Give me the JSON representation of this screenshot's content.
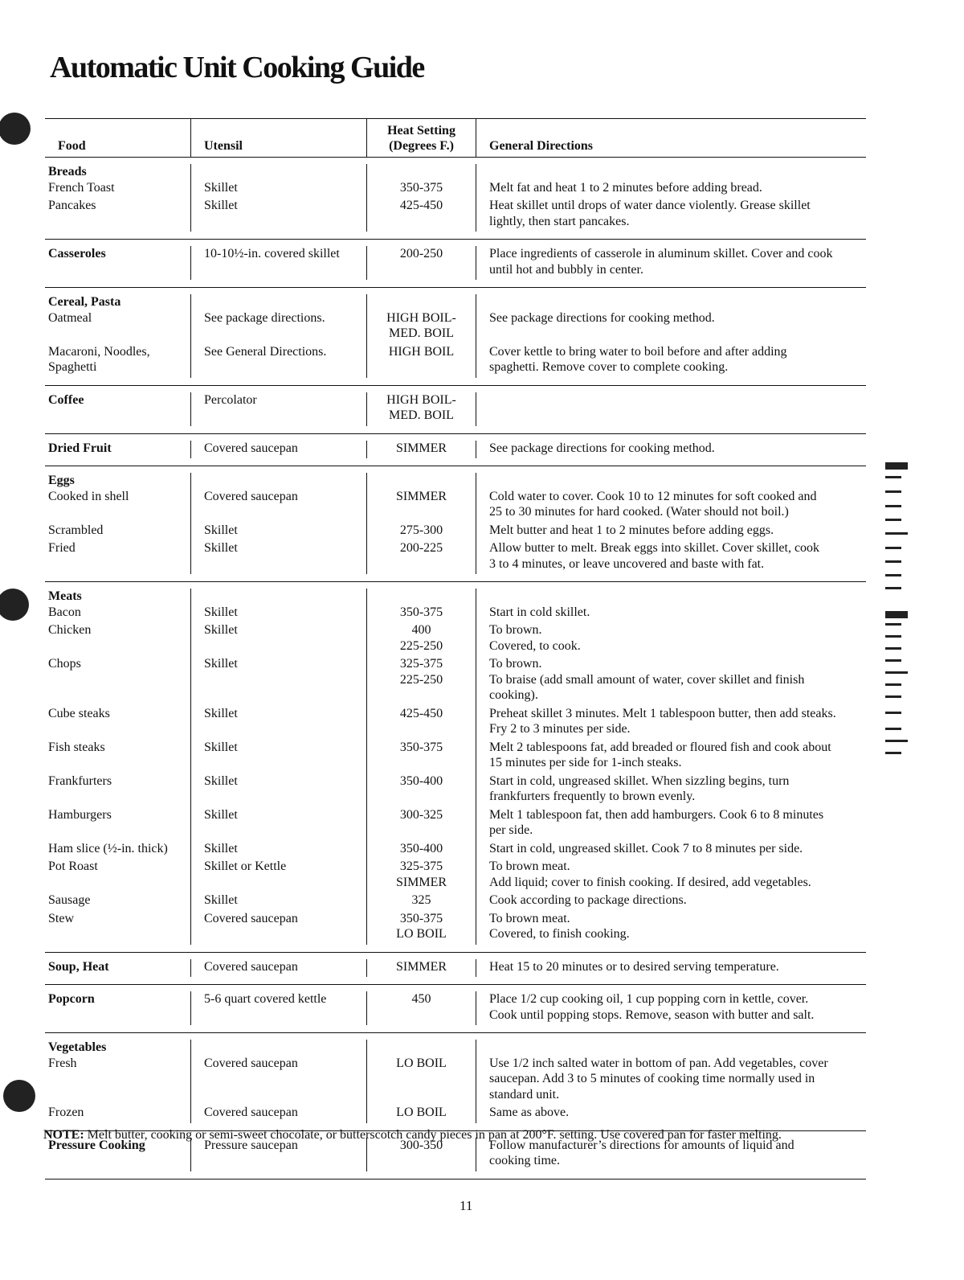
{
  "title": "Automatic Unit Cooking Guide",
  "headers": {
    "food": "Food",
    "utensil": "Utensil",
    "heat_setting": [
      "Heat Setting",
      "(Degrees F.)"
    ],
    "directions": "General Directions"
  },
  "sections": [
    {
      "heading": "Breads",
      "entries": [
        {
          "food": [
            "French Toast"
          ],
          "utensil": [
            "Skillet"
          ],
          "heat": [
            "350-375"
          ],
          "dir": [
            "Melt fat and heat 1 to 2 minutes before adding bread."
          ]
        },
        {
          "food": [
            "Pancakes"
          ],
          "utensil": [
            "Skillet"
          ],
          "heat": [
            "425-450"
          ],
          "dir": [
            "Heat skillet until drops of water dance violently. Grease skillet",
            "lightly, then start pancakes."
          ]
        }
      ]
    },
    {
      "heading": null,
      "entries": [
        {
          "food": [
            "Casseroles"
          ],
          "bold": true,
          "utensil": [
            "10-10½-in. covered skillet"
          ],
          "heat": [
            "200-250"
          ],
          "dir": [
            "Place ingredients of casserole in aluminum skillet. Cover and cook",
            "until hot and bubbly in center."
          ]
        }
      ]
    },
    {
      "heading": "Cereal, Pasta",
      "entries": [
        {
          "food": [
            "Oatmeal"
          ],
          "utensil": [
            "See package directions."
          ],
          "heat": [
            "HIGH BOIL-",
            "MED. BOIL"
          ],
          "dir": [
            "See package directions for cooking method."
          ]
        },
        {
          "food": [
            "Macaroni, Noodles,",
            "Spaghetti"
          ],
          "utensil": [
            "See General Directions."
          ],
          "heat": [
            "HIGH BOIL"
          ],
          "dir": [
            "Cover kettle to bring water to boil before and after adding",
            "spaghetti. Remove cover to complete cooking."
          ]
        }
      ]
    },
    {
      "heading": null,
      "entries": [
        {
          "food": [
            "Coffee"
          ],
          "bold": true,
          "utensil": [
            "Percolator"
          ],
          "heat": [
            "HIGH BOIL-",
            "MED. BOIL"
          ],
          "dir": []
        }
      ]
    },
    {
      "heading": null,
      "entries": [
        {
          "food": [
            "Dried Fruit"
          ],
          "bold": true,
          "utensil": [
            "Covered saucepan"
          ],
          "heat": [
            "SIMMER"
          ],
          "dir": [
            "See package directions for cooking method."
          ]
        }
      ]
    },
    {
      "heading": "Eggs",
      "entries": [
        {
          "food": [
            "Cooked in shell"
          ],
          "utensil": [
            "Covered saucepan"
          ],
          "heat": [
            "SIMMER"
          ],
          "dir": [
            "Cold water to cover. Cook 10 to 12 minutes for soft cooked and",
            "25 to 30 minutes for hard cooked. (Water should not boil.)"
          ]
        },
        {
          "food": [
            "Scrambled"
          ],
          "utensil": [
            "Skillet"
          ],
          "heat": [
            "275-300"
          ],
          "dir": [
            "Melt butter and heat 1 to 2 minutes before adding eggs."
          ]
        },
        {
          "food": [
            "Fried"
          ],
          "utensil": [
            "Skillet"
          ],
          "heat": [
            "200-225"
          ],
          "dir": [
            "Allow butter to melt. Break eggs into skillet. Cover skillet, cook",
            "3 to 4 minutes, or leave uncovered and baste with fat."
          ]
        }
      ]
    },
    {
      "heading": "Meats",
      "entries": [
        {
          "food": [
            "Bacon"
          ],
          "utensil": [
            "Skillet"
          ],
          "heat": [
            "350-375"
          ],
          "dir": [
            "Start in cold skillet."
          ]
        },
        {
          "food": [
            "Chicken"
          ],
          "utensil": [
            "Skillet"
          ],
          "heat": [
            "400",
            "225-250"
          ],
          "dir": [
            "To brown.",
            "Covered, to cook."
          ]
        },
        {
          "food": [
            "Chops"
          ],
          "utensil": [
            "Skillet"
          ],
          "heat": [
            "325-375",
            "225-250"
          ],
          "dir": [
            "To brown.",
            "To braise (add small amount of water, cover skillet and finish",
            "cooking)."
          ]
        },
        {
          "food": [
            "Cube steaks"
          ],
          "utensil": [
            "Skillet"
          ],
          "heat": [
            "425-450"
          ],
          "dir": [
            "Preheat skillet 3 minutes. Melt 1 tablespoon butter, then add steaks.",
            "Fry 2 to 3 minutes per side."
          ]
        },
        {
          "food": [
            "Fish steaks"
          ],
          "utensil": [
            "Skillet"
          ],
          "heat": [
            "350-375"
          ],
          "dir": [
            "Melt 2 tablespoons fat, add breaded or floured fish and cook about",
            "15 minutes per side for 1-inch steaks."
          ]
        },
        {
          "food": [
            "Frankfurters"
          ],
          "utensil": [
            "Skillet"
          ],
          "heat": [
            "350-400"
          ],
          "dir": [
            "Start in cold, ungreased skillet. When sizzling begins, turn",
            "frankfurters frequently to brown evenly."
          ]
        },
        {
          "food": [
            "Hamburgers"
          ],
          "utensil": [
            "Skillet"
          ],
          "heat": [
            "300-325"
          ],
          "dir": [
            "Melt 1 tablespoon fat, then add hamburgers. Cook 6 to 8 minutes",
            "per side."
          ]
        },
        {
          "food": [
            "Ham slice (½-in. thick)"
          ],
          "utensil": [
            "Skillet"
          ],
          "heat": [
            "350-400"
          ],
          "dir": [
            "Start in cold, ungreased skillet. Cook 7 to 8 minutes per side."
          ]
        },
        {
          "food": [
            "Pot Roast"
          ],
          "utensil": [
            "Skillet or Kettle"
          ],
          "heat": [
            "325-375",
            "SIMMER"
          ],
          "dir": [
            "To brown meat.",
            "Add liquid; cover to finish cooking. If desired, add vegetables."
          ]
        },
        {
          "food": [
            "Sausage"
          ],
          "utensil": [
            "Skillet"
          ],
          "heat": [
            "325"
          ],
          "dir": [
            "Cook according to package directions."
          ]
        },
        {
          "food": [
            "Stew"
          ],
          "utensil": [
            "Covered saucepan"
          ],
          "heat": [
            "350-375",
            "LO BOIL"
          ],
          "dir": [
            "To brown meat.",
            "Covered, to finish cooking."
          ]
        }
      ]
    },
    {
      "heading": null,
      "entries": [
        {
          "food": [
            "Soup, Heat"
          ],
          "bold": true,
          "utensil": [
            "Covered saucepan"
          ],
          "heat": [
            "SIMMER"
          ],
          "dir": [
            "Heat 15 to 20 minutes or to desired serving temperature."
          ]
        }
      ]
    },
    {
      "heading": null,
      "entries": [
        {
          "food": [
            "Popcorn"
          ],
          "bold": true,
          "utensil": [
            "5-6 quart covered kettle"
          ],
          "heat": [
            "450"
          ],
          "dir": [
            "Place 1/2 cup cooking oil, 1 cup popping corn in kettle, cover.",
            "Cook until popping stops. Remove, season with butter and salt."
          ]
        }
      ]
    },
    {
      "heading": "Vegetables",
      "entries": [
        {
          "food": [
            "Fresh"
          ],
          "utensil": [
            "Covered saucepan"
          ],
          "heat": [
            "LO BOIL"
          ],
          "dir": [
            "Use 1/2 inch salted water in bottom of pan. Add vegetables, cover",
            "saucepan. Add 3 to 5 minutes of cooking time normally used in",
            "standard unit."
          ]
        },
        {
          "food": [
            "Frozen"
          ],
          "utensil": [
            "Covered saucepan"
          ],
          "heat": [
            "LO BOIL"
          ],
          "dir": [
            "Same as above."
          ]
        }
      ]
    },
    {
      "heading": null,
      "entries": [
        {
          "food": [
            "Pressure Cooking"
          ],
          "bold": true,
          "utensil": [
            "Pressure saucepan"
          ],
          "heat": [
            "300-350"
          ],
          "dir": [
            "Follow manufacturer’s directions for amounts of liquid and",
            "cooking time."
          ]
        }
      ]
    }
  ],
  "note": {
    "label": "NOTE:",
    "text": " Melt butter, cooking or semi-sweet chocolate, or butterscotch candy pieces in pan at 200°F. setting. Use covered pan for faster melting."
  },
  "page_number": "11"
}
